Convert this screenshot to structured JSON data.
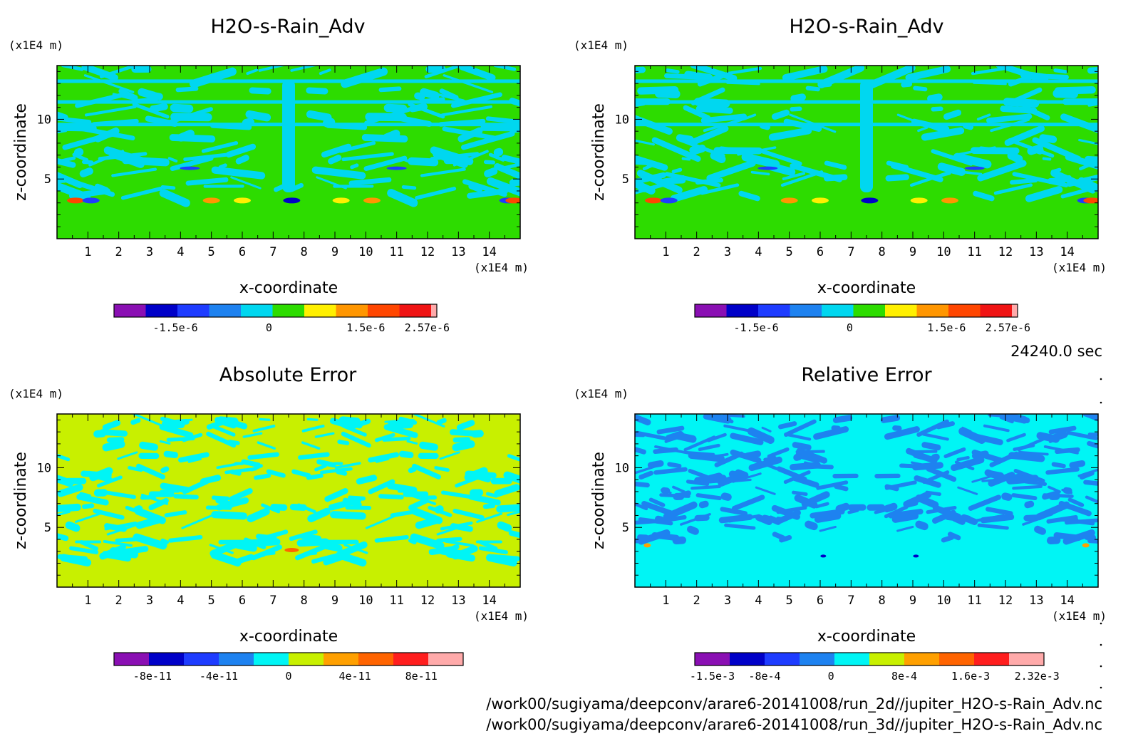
{
  "time_label": "24240.0 sec",
  "files": [
    "/work00/sugiyama/deepconv/arare6-20141008/run_2d//jupiter_H2O-s-Rain_Adv.nc",
    "/work00/sugiyama/deepconv/arare6-20141008/run_3d//jupiter_H2O-s-Rain_Adv.nc"
  ],
  "chart_data": [
    {
      "type": "heatmap",
      "title": "H2O-s-Rain_Adv",
      "xlabel": "x-coordinate",
      "ylabel": "z-coordinate",
      "x_unit": "(x1E4 m)",
      "y_unit": "(x1E4 m)",
      "xlim": [
        0,
        15
      ],
      "ylim": [
        0,
        14.5
      ],
      "xticks": [
        1,
        2,
        3,
        4,
        5,
        6,
        7,
        8,
        9,
        10,
        11,
        12,
        13,
        14
      ],
      "yticks": [
        5,
        10
      ],
      "background_level": "0 to 5e-7 (green)",
      "colorbar": {
        "colors": [
          "#8a0fb3",
          "#0000c8",
          "#1e3cff",
          "#1e82f0",
          "#00d7f0",
          "#2ddc00",
          "#fff000",
          "#ff9600",
          "#ff4600",
          "#f01414",
          "#ffaaaa"
        ],
        "tick_labels": [
          "-1.5e-6",
          "0",
          "1.5e-6",
          "2.57e-6"
        ]
      }
    },
    {
      "type": "heatmap",
      "title": "H2O-s-Rain_Adv",
      "xlabel": "x-coordinate",
      "ylabel": "z-coordinate",
      "x_unit": "(x1E4 m)",
      "y_unit": "(x1E4 m)",
      "xlim": [
        0,
        15
      ],
      "ylim": [
        0,
        14.5
      ],
      "xticks": [
        1,
        2,
        3,
        4,
        5,
        6,
        7,
        8,
        9,
        10,
        11,
        12,
        13,
        14
      ],
      "yticks": [
        5,
        10
      ],
      "background_level": "0 to 5e-7 (green)",
      "colorbar": {
        "colors": [
          "#8a0fb3",
          "#0000c8",
          "#1e3cff",
          "#1e82f0",
          "#00d7f0",
          "#2ddc00",
          "#fff000",
          "#ff9600",
          "#ff4600",
          "#f01414",
          "#ffaaaa"
        ],
        "tick_labels": [
          "-1.5e-6",
          "0",
          "1.5e-6",
          "2.57e-6"
        ]
      }
    },
    {
      "type": "heatmap",
      "title": "Absolute Error",
      "xlabel": "x-coordinate",
      "ylabel": "z-coordinate",
      "x_unit": "(x1E4 m)",
      "y_unit": "(x1E4 m)",
      "xlim": [
        0,
        15
      ],
      "ylim": [
        0,
        14.5
      ],
      "xticks": [
        1,
        2,
        3,
        4,
        5,
        6,
        7,
        8,
        9,
        10,
        11,
        12,
        13,
        14
      ],
      "yticks": [
        5,
        10
      ],
      "background_level": "0 to 2e-11 (yellow-green)",
      "colorbar": {
        "colors": [
          "#8a0fb3",
          "#0000c8",
          "#1e3cff",
          "#1e82f0",
          "#00f5f5",
          "#c8f000",
          "#ffa000",
          "#ff6400",
          "#ff1e1e",
          "#ffaaaa"
        ],
        "tick_labels": [
          "-8e-11",
          "-4e-11",
          "0",
          "4e-11",
          "8e-11"
        ]
      }
    },
    {
      "type": "heatmap",
      "title": "Relative Error",
      "xlabel": "x-coordinate",
      "ylabel": "z-coordinate",
      "x_unit": "(x1E4 m)",
      "y_unit": "(x1E4 m)",
      "xlim": [
        0,
        15
      ],
      "ylim": [
        0,
        14.5
      ],
      "xticks": [
        1,
        2,
        3,
        4,
        5,
        6,
        7,
        8,
        9,
        10,
        11,
        12,
        13,
        14
      ],
      "yticks": [
        5,
        10
      ],
      "background_level": "0 to 4e-4 (cyan)",
      "colorbar": {
        "colors": [
          "#8a0fb3",
          "#0000c8",
          "#1e3cff",
          "#1e82f0",
          "#00f5f5",
          "#c8f000",
          "#ffa000",
          "#ff6400",
          "#ff1e1e",
          "#ffaaaa"
        ],
        "tick_labels": [
          "-1.5e-3",
          "-8e-4",
          "0",
          "8e-4",
          "1.6e-3",
          "2.32e-3"
        ]
      }
    }
  ]
}
